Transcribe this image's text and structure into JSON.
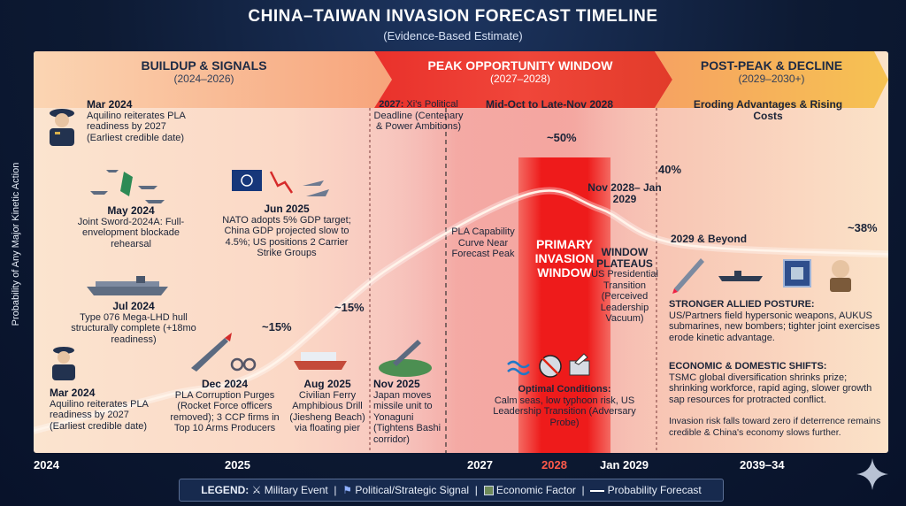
{
  "title": "CHINA–TAIWAN INVASION FORECAST TIMELINE",
  "subtitle": "(Evidence-Based Estimate)",
  "y_axis_label": "Probability of Any Major Kinetic Action",
  "phases": [
    {
      "name": "BUILDUP & SIGNALS",
      "years": "(2024–2026)"
    },
    {
      "name": "PEAK OPPORTUNITY WINDOW",
      "years": "(2027–2028)"
    },
    {
      "name": "POST-PEAK & DECLINE",
      "years": "(2029–2030+)"
    }
  ],
  "events": {
    "mar2024_top": {
      "date": "Mar 2024",
      "text": "Aquilino reiterates PLA readiness by 2027 (Earliest credible date)"
    },
    "may2024": {
      "date": "May 2024",
      "text": "Joint Sword-2024A: Full-envelopment blockade rehearsal"
    },
    "jul2024": {
      "date": "Jul 2024",
      "text": "Type 076 Mega-LHD hull structurally complete (+18mo readiness)"
    },
    "mar2024_bottom": {
      "date": "Mar 2024",
      "text": "Aquilino reiterates PLA readiness by 2027 (Earliest credible date)"
    },
    "jun2025": {
      "date": "Jun 2025",
      "text": "NATO adopts 5% GDP target; China GDP projected slow to 4.5%; US positions 2 Carrier Strike Groups"
    },
    "dec2024": {
      "date": "Dec 2024",
      "text": "PLA Corruption Purges (Rocket Force officers removed); 3 CCP firms in Top 10 Arms Producers"
    },
    "aug2025": {
      "date": "Aug 2025",
      "text": "Civilian Ferry Amphibious Drill (Jiesheng Beach) via floating pier"
    },
    "nov2025": {
      "date": "Nov 2025",
      "text": "Japan moves missile unit to Yonaguni (Tightens Bashi corridor)"
    },
    "deadline2027": {
      "date": "2027:",
      "text": "Xi's Political Deadline (Centenary & Power Ambitions)"
    },
    "capability": {
      "text": "PLA Capability Curve Near Forecast Peak"
    },
    "peak_window": {
      "date": "Mid-Oct to Late-Nov 2028"
    },
    "primary_window": {
      "text": "PRIMARY INVASION WINDOW"
    },
    "optimal": {
      "title": "Optimal Conditions:",
      "text": "Calm seas, low typhoon risk, US Leadership Transition (Adversary Probe)"
    },
    "nov2028": {
      "date": "Nov 2028– Jan 2029",
      "title": "WINDOW PLATEAUS",
      "text": "US Presidential Transition (Perceived Leadership Vacuum)"
    },
    "eroding": {
      "text": "Eroding Advantages & Rising Costs"
    },
    "beyond2029": {
      "date": "2029 & Beyond"
    },
    "allied": {
      "title": "STRONGER ALLIED POSTURE:",
      "text": "US/Partners field hypersonic weapons, AUKUS submarines, new bombers; tighter joint exercises erode kinetic advantage."
    },
    "economic": {
      "title": "ECONOMIC & DOMESTIC SHIFTS:",
      "text": "TSMC global diversification shrinks prize; shrinking workforce, rapid aging, slower growth sap resources for protracted conflict."
    },
    "invasion_risk": {
      "text": "Invasion risk falls toward zero if deterrence remains credible & China's economy slows further."
    }
  },
  "chart_data": {
    "type": "line",
    "title": "CHINA–TAIWAN INVASION FORECAST TIMELINE",
    "ylabel": "Probability of Any Major Kinetic Action",
    "xlabel": "",
    "x_ticks": [
      "2024",
      "2025",
      "2027",
      "2028",
      "Jan 2029",
      "2039–34"
    ],
    "series": [
      {
        "name": "Probability Forecast",
        "x": [
          2024.0,
          2025.0,
          2025.5,
          2027.0,
          2028.0,
          2029.0,
          2030.0,
          2032.0
        ],
        "y": [
          3,
          10,
          15,
          35,
          50,
          47,
          40,
          38
        ]
      }
    ],
    "data_labels": [
      "~15%",
      "~15%",
      "~50%",
      "40%",
      "~38%"
    ],
    "ylim": [
      0,
      60
    ]
  },
  "legend": {
    "label": "LEGEND:",
    "military": "Military Event",
    "political": "Political/Strategic Signal",
    "economic": "Economic Factor",
    "forecast": "Probability Forecast"
  },
  "colors": {
    "curve": "#fff4ea",
    "primary_band": "#ee1b1b",
    "header_red": "#e2352e"
  }
}
